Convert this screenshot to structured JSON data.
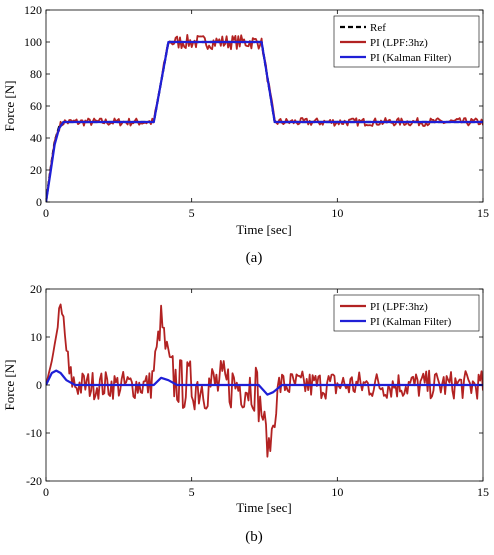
{
  "chart_data": [
    {
      "type": "line",
      "panel_label": "(a)",
      "xlabel": "Time [sec]",
      "ylabel": "Force [N]",
      "xlim": [
        0,
        15
      ],
      "ylim": [
        0,
        120
      ],
      "xticks": [
        0,
        5,
        10,
        15
      ],
      "yticks": [
        0,
        20,
        40,
        60,
        80,
        100,
        120
      ],
      "grid": false,
      "legend_position": "top-right",
      "series": [
        {
          "name": "Ref",
          "color": "#000000",
          "style": "dashed",
          "x": [
            0,
            0.15,
            0.3,
            0.45,
            0.6,
            3.7,
            4.2,
            7.4,
            7.85,
            15
          ],
          "y": [
            0,
            20,
            38,
            47,
            50,
            50,
            100,
            100,
            50,
            50
          ]
        },
        {
          "name": "PI (LPF:3hz)",
          "color": "#b22222",
          "style": "noisy",
          "noise": 2.5,
          "x": [
            0,
            0.15,
            0.3,
            0.45,
            0.6,
            3.7,
            4.2,
            7.4,
            7.85,
            15
          ],
          "y": [
            0,
            20,
            38,
            47,
            50,
            50,
            100,
            100,
            50,
            50
          ]
        },
        {
          "name": "PI (Kalman Filter)",
          "color": "#1f1fd6",
          "style": "solid",
          "x": [
            0,
            0.15,
            0.3,
            0.45,
            0.6,
            3.7,
            4.2,
            7.4,
            7.85,
            15
          ],
          "y": [
            0,
            18,
            36,
            46,
            50,
            50,
            100,
            100,
            50,
            50
          ]
        }
      ]
    },
    {
      "type": "line",
      "panel_label": "(b)",
      "xlabel": "Time [sec]",
      "ylabel": "Force [N]",
      "xlim": [
        0,
        15
      ],
      "ylim": [
        -20,
        20
      ],
      "xticks": [
        0,
        5,
        10,
        15
      ],
      "yticks": [
        -20,
        -10,
        0,
        10,
        20
      ],
      "grid": false,
      "legend_position": "top-right",
      "series": [
        {
          "name": "PI (LPF:3hz)",
          "color": "#b22222",
          "style": "noisy",
          "noise": 3,
          "x": [
            0,
            0.2,
            0.4,
            0.5,
            0.6,
            0.8,
            1.0,
            3.6,
            3.8,
            3.95,
            4.1,
            4.4,
            4.7,
            7.2,
            7.5,
            7.65,
            7.8,
            8.0,
            15
          ],
          "y": [
            0,
            5,
            12,
            15,
            13,
            2,
            0,
            0,
            7,
            14,
            8,
            1,
            0,
            0,
            -8,
            -14,
            -8,
            0,
            0
          ]
        },
        {
          "name": "PI (Kalman Filter)",
          "color": "#1f1fd6",
          "style": "solid",
          "x": [
            0,
            0.2,
            0.35,
            0.5,
            0.7,
            1.0,
            3.7,
            3.95,
            4.2,
            4.5,
            7.3,
            7.6,
            7.8,
            8.1,
            15
          ],
          "y": [
            0,
            2.5,
            3,
            2.5,
            1,
            0,
            0,
            1.5,
            1,
            0,
            0,
            -2,
            -1.5,
            0,
            0
          ]
        }
      ]
    }
  ]
}
